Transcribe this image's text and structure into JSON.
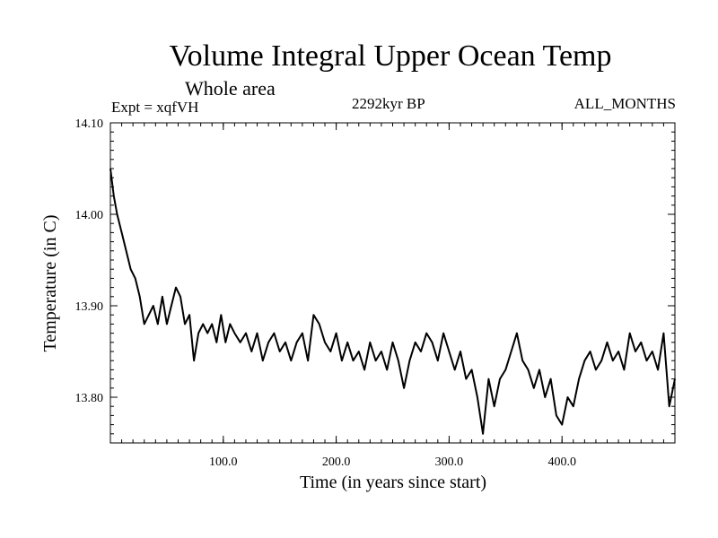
{
  "chart_data": {
    "type": "line",
    "title": "Volume Integral Upper Ocean Temp",
    "subtitle": "Whole area",
    "experiment": "Expt = xqfVH",
    "period": "2292kyr BP",
    "season": "ALL_MONTHS",
    "xlabel": "Time (in years since start)",
    "ylabel": "Temperature (in C)",
    "xlim": [
      0,
      500
    ],
    "ylim": [
      13.75,
      14.1
    ],
    "xticks": [
      100,
      200,
      300,
      400
    ],
    "xtick_labels": [
      "100.0",
      "200.0",
      "300.0",
      "400.0"
    ],
    "yticks": [
      13.8,
      13.9,
      14.0,
      14.1
    ],
    "ytick_labels": [
      "13.80",
      "13.90",
      "14.00",
      "14.10"
    ],
    "series": [
      {
        "name": "Volume Integral Upper Ocean Temp",
        "x": [
          0,
          3,
          6,
          10,
          14,
          18,
          22,
          26,
          30,
          34,
          38,
          42,
          46,
          50,
          54,
          58,
          62,
          66,
          70,
          74,
          78,
          82,
          86,
          90,
          94,
          98,
          102,
          106,
          110,
          115,
          120,
          125,
          130,
          135,
          140,
          145,
          150,
          155,
          160,
          165,
          170,
          175,
          180,
          185,
          190,
          195,
          200,
          205,
          210,
          215,
          220,
          225,
          230,
          235,
          240,
          245,
          250,
          255,
          260,
          265,
          270,
          275,
          280,
          285,
          290,
          295,
          300,
          305,
          310,
          315,
          320,
          325,
          330,
          335,
          340,
          345,
          350,
          355,
          360,
          365,
          370,
          375,
          380,
          385,
          390,
          395,
          400,
          405,
          410,
          415,
          420,
          425,
          430,
          435,
          440,
          445,
          450,
          455,
          460,
          465,
          470,
          475,
          480,
          485,
          490,
          495,
          500
        ],
        "values": [
          14.05,
          14.02,
          14.0,
          13.98,
          13.96,
          13.94,
          13.93,
          13.91,
          13.88,
          13.89,
          13.9,
          13.88,
          13.91,
          13.88,
          13.9,
          13.92,
          13.91,
          13.88,
          13.89,
          13.84,
          13.87,
          13.88,
          13.87,
          13.88,
          13.86,
          13.89,
          13.86,
          13.88,
          13.87,
          13.86,
          13.87,
          13.85,
          13.87,
          13.84,
          13.86,
          13.87,
          13.85,
          13.86,
          13.84,
          13.86,
          13.87,
          13.84,
          13.89,
          13.88,
          13.86,
          13.85,
          13.87,
          13.84,
          13.86,
          13.84,
          13.85,
          13.83,
          13.86,
          13.84,
          13.85,
          13.83,
          13.86,
          13.84,
          13.81,
          13.84,
          13.86,
          13.85,
          13.87,
          13.86,
          13.84,
          13.87,
          13.85,
          13.83,
          13.85,
          13.82,
          13.83,
          13.8,
          13.76,
          13.82,
          13.79,
          13.82,
          13.83,
          13.85,
          13.87,
          13.84,
          13.83,
          13.81,
          13.83,
          13.8,
          13.82,
          13.78,
          13.77,
          13.8,
          13.79,
          13.82,
          13.84,
          13.85,
          13.83,
          13.84,
          13.86,
          13.84,
          13.85,
          13.83,
          13.87,
          13.85,
          13.86,
          13.84,
          13.85,
          13.83,
          13.87,
          13.79,
          13.82
        ]
      }
    ]
  }
}
